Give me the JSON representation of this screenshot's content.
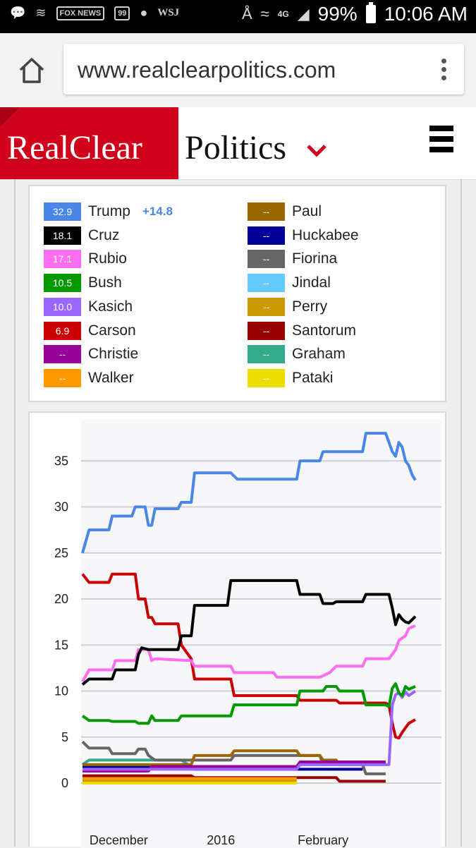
{
  "status_bar": {
    "left_icons": [
      "chat-icon",
      "wifi-question-icon",
      "fox-news-icon",
      "99-icon",
      "globe-icon",
      "wsj-icon"
    ],
    "fox_label": "FOX NEWS",
    "badge_99": "99",
    "wsj_label": "WSJ",
    "network": "4G",
    "battery": "99%",
    "time": "10:06 AM"
  },
  "browser": {
    "url": "www.realclearpolitics.com"
  },
  "site": {
    "logo_red": "RealClear",
    "logo_black": "Politics",
    "accent": "#d0021b"
  },
  "legend": {
    "items": [
      {
        "value": "32.9",
        "name": "Trump",
        "delta": "+14.8",
        "color": "#4a86e8"
      },
      {
        "value": "18.1",
        "name": "Cruz",
        "color": "#000000"
      },
      {
        "value": "17.1",
        "name": "Rubio",
        "color": "#ff6ef0"
      },
      {
        "value": "10.5",
        "name": "Bush",
        "color": "#009900"
      },
      {
        "value": "10.0",
        "name": "Kasich",
        "color": "#9966ff"
      },
      {
        "value": "6.9",
        "name": "Carson",
        "color": "#cc0000"
      },
      {
        "value": "--",
        "name": "Christie",
        "color": "#990099"
      },
      {
        "value": "--",
        "name": "Walker",
        "color": "#ff9900"
      },
      {
        "value": "--",
        "name": "Paul",
        "color": "#996600"
      },
      {
        "value": "--",
        "name": "Huckabee",
        "color": "#000099"
      },
      {
        "value": "--",
        "name": "Fiorina",
        "color": "#666666"
      },
      {
        "value": "--",
        "name": "Jindal",
        "color": "#66ccff"
      },
      {
        "value": "--",
        "name": "Perry",
        "color": "#cc9900"
      },
      {
        "value": "--",
        "name": "Santorum",
        "color": "#990000"
      },
      {
        "value": "--",
        "name": "Graham",
        "color": "#33aa88"
      },
      {
        "value": "--",
        "name": "Pataki",
        "color": "#eedd00"
      }
    ]
  },
  "chart_data": {
    "type": "line",
    "title": "",
    "xlabel": "",
    "ylabel": "",
    "x_tick_labels": [
      "December",
      "2016",
      "February"
    ],
    "x_tick_dates": [
      "2015-12-01",
      "2016-01-01",
      "2016-02-01"
    ],
    "y_ticks": [
      0,
      5,
      10,
      15,
      20,
      25,
      30,
      35
    ],
    "ylim": [
      0,
      38.5
    ],
    "xlim": [
      "2015-11-20",
      "2016-02-29"
    ],
    "grid": true,
    "series": [
      {
        "name": "Trump",
        "color": "#4a86e8",
        "points": [
          [
            "2015-11-20",
            25
          ],
          [
            "2015-11-22",
            27.5
          ],
          [
            "2015-11-28",
            27.5
          ],
          [
            "2015-11-29",
            29
          ],
          [
            "2015-12-05",
            29
          ],
          [
            "2015-12-06",
            30
          ],
          [
            "2015-12-09",
            30
          ],
          [
            "2015-12-10",
            28
          ],
          [
            "2015-12-11",
            28
          ],
          [
            "2015-12-12",
            29.8
          ],
          [
            "2015-12-19",
            29.8
          ],
          [
            "2015-12-20",
            30.5
          ],
          [
            "2015-12-23",
            30.5
          ],
          [
            "2015-12-24",
            33.7
          ],
          [
            "2016-01-04",
            33.7
          ],
          [
            "2016-01-06",
            33
          ],
          [
            "2016-01-24",
            33
          ],
          [
            "2016-01-25",
            35
          ],
          [
            "2016-01-31",
            35
          ],
          [
            "2016-02-01",
            36
          ],
          [
            "2016-02-13",
            36
          ],
          [
            "2016-02-14",
            38
          ],
          [
            "2016-02-20",
            38
          ],
          [
            "2016-02-22",
            36
          ],
          [
            "2016-02-23",
            35.5
          ],
          [
            "2016-02-24",
            37
          ],
          [
            "2016-02-25",
            36.5
          ],
          [
            "2016-02-26",
            35
          ],
          [
            "2016-02-27",
            34.5
          ],
          [
            "2016-02-28",
            33.5
          ],
          [
            "2016-02-29",
            32.9
          ]
        ]
      },
      {
        "name": "Cruz",
        "color": "#000000",
        "points": [
          [
            "2015-11-20",
            10.7
          ],
          [
            "2015-11-22",
            11.3
          ],
          [
            "2015-11-29",
            11.3
          ],
          [
            "2015-11-30",
            12.3
          ],
          [
            "2015-12-06",
            12.3
          ],
          [
            "2015-12-07",
            14
          ],
          [
            "2015-12-08",
            14.7
          ],
          [
            "2015-12-10",
            14.5
          ],
          [
            "2015-12-19",
            14.5
          ],
          [
            "2015-12-20",
            16
          ],
          [
            "2015-12-23",
            16
          ],
          [
            "2015-12-24",
            19.3
          ],
          [
            "2016-01-03",
            19.3
          ],
          [
            "2016-01-04",
            22
          ],
          [
            "2016-01-24",
            22
          ],
          [
            "2016-01-25",
            20.5
          ],
          [
            "2016-01-31",
            20.5
          ],
          [
            "2016-02-01",
            19.5
          ],
          [
            "2016-02-04",
            19.5
          ],
          [
            "2016-02-05",
            19.7
          ],
          [
            "2016-02-13",
            19.7
          ],
          [
            "2016-02-14",
            20.5
          ],
          [
            "2016-02-21",
            20.5
          ],
          [
            "2016-02-22",
            19
          ],
          [
            "2016-02-23",
            17.2
          ],
          [
            "2016-02-24",
            18.3
          ],
          [
            "2016-02-25",
            17.8
          ],
          [
            "2016-02-26",
            17.5
          ],
          [
            "2016-02-27",
            17.4
          ],
          [
            "2016-02-29",
            18.1
          ]
        ]
      },
      {
        "name": "Rubio",
        "color": "#ff6ef0",
        "points": [
          [
            "2015-11-20",
            11
          ],
          [
            "2015-11-22",
            12.3
          ],
          [
            "2015-11-29",
            12.3
          ],
          [
            "2015-11-30",
            13.3
          ],
          [
            "2015-12-06",
            13.3
          ],
          [
            "2015-12-07",
            14.5
          ],
          [
            "2015-12-10",
            14.5
          ],
          [
            "2015-12-11",
            13.3
          ],
          [
            "2015-12-12",
            13.5
          ],
          [
            "2015-12-23",
            13.3
          ],
          [
            "2015-12-24",
            12.7
          ],
          [
            "2016-01-04",
            12.7
          ],
          [
            "2016-01-05",
            12
          ],
          [
            "2016-01-17",
            12
          ],
          [
            "2016-01-18",
            11.5
          ],
          [
            "2016-01-28",
            11.5
          ],
          [
            "2016-01-30",
            11.5
          ],
          [
            "2016-01-31",
            11.5
          ],
          [
            "2016-02-03",
            12
          ],
          [
            "2016-02-05",
            12.7
          ],
          [
            "2016-02-13",
            12.7
          ],
          [
            "2016-02-14",
            13.5
          ],
          [
            "2016-02-21",
            13.5
          ],
          [
            "2016-02-22",
            14
          ],
          [
            "2016-02-23",
            14.5
          ],
          [
            "2016-02-24",
            15.5
          ],
          [
            "2016-02-26",
            16
          ],
          [
            "2016-02-27",
            16.8
          ],
          [
            "2016-02-29",
            17.1
          ]
        ]
      },
      {
        "name": "Bush",
        "color": "#009900",
        "points": [
          [
            "2015-11-20",
            7.3
          ],
          [
            "2015-11-22",
            6.8
          ],
          [
            "2015-11-28",
            6.8
          ],
          [
            "2015-11-29",
            6.7
          ],
          [
            "2015-12-06",
            6.7
          ],
          [
            "2015-12-07",
            6.5
          ],
          [
            "2015-12-10",
            6.5
          ],
          [
            "2015-12-11",
            7.3
          ],
          [
            "2015-12-12",
            6.8
          ],
          [
            "2015-12-19",
            6.8
          ],
          [
            "2015-12-20",
            7.3
          ],
          [
            "2016-01-04",
            7.3
          ],
          [
            "2016-01-05",
            8.5
          ],
          [
            "2016-01-24",
            8.5
          ],
          [
            "2016-01-25",
            10
          ],
          [
            "2016-02-01",
            10
          ],
          [
            "2016-02-02",
            10.5
          ],
          [
            "2016-02-05",
            10.5
          ],
          [
            "2016-02-06",
            10
          ],
          [
            "2016-02-13",
            10
          ],
          [
            "2016-02-14",
            8.5
          ],
          [
            "2016-02-20",
            8.5
          ],
          [
            "2016-02-21",
            8.3
          ],
          [
            "2016-02-22",
            10.3
          ],
          [
            "2016-02-23",
            10.8
          ],
          [
            "2016-02-24",
            9.8
          ],
          [
            "2016-02-25",
            9.5
          ],
          [
            "2016-02-26",
            10.5
          ],
          [
            "2016-02-27",
            10.2
          ],
          [
            "2016-02-29",
            10.5
          ]
        ]
      },
      {
        "name": "Kasich",
        "color": "#9966ff",
        "points": [
          [
            "2015-11-20",
            1.5
          ],
          [
            "2016-01-24",
            1.5
          ],
          [
            "2016-01-25",
            2
          ],
          [
            "2016-02-20",
            2
          ],
          [
            "2016-02-21",
            2
          ],
          [
            "2016-02-22",
            8.5
          ],
          [
            "2016-02-23",
            9.6
          ],
          [
            "2016-02-24",
            9.8
          ],
          [
            "2016-02-25",
            9.3
          ],
          [
            "2016-02-26",
            9.9
          ],
          [
            "2016-02-27",
            9.5
          ],
          [
            "2016-02-29",
            10
          ]
        ]
      },
      {
        "name": "Carson",
        "color": "#cc0000",
        "points": [
          [
            "2015-11-20",
            22.7
          ],
          [
            "2015-11-22",
            21.8
          ],
          [
            "2015-11-28",
            21.8
          ],
          [
            "2015-11-29",
            22.7
          ],
          [
            "2015-12-06",
            22.7
          ],
          [
            "2015-12-07",
            20
          ],
          [
            "2015-12-09",
            20
          ],
          [
            "2015-12-10",
            18
          ],
          [
            "2015-12-11",
            18
          ],
          [
            "2015-12-12",
            17.3
          ],
          [
            "2015-12-19",
            17.3
          ],
          [
            "2015-12-20",
            15
          ],
          [
            "2015-12-23",
            13.5
          ],
          [
            "2015-12-24",
            11.3
          ],
          [
            "2016-01-04",
            11.3
          ],
          [
            "2016-01-05",
            9.5
          ],
          [
            "2016-01-24",
            9.5
          ],
          [
            "2016-01-25",
            9
          ],
          [
            "2016-02-05",
            9
          ],
          [
            "2016-02-06",
            8.7
          ],
          [
            "2016-02-20",
            8.7
          ],
          [
            "2016-02-21",
            8.5
          ],
          [
            "2016-02-22",
            6.5
          ],
          [
            "2016-02-23",
            5
          ],
          [
            "2016-02-24",
            4.9
          ],
          [
            "2016-02-25",
            5.5
          ],
          [
            "2016-02-26",
            6
          ],
          [
            "2016-02-27",
            6.5
          ],
          [
            "2016-02-29",
            6.9
          ]
        ]
      },
      {
        "name": "Christie",
        "color": "#990099",
        "points": [
          [
            "2015-11-20",
            1.3
          ],
          [
            "2015-12-10",
            1.3
          ],
          [
            "2015-12-11",
            1.8
          ],
          [
            "2016-01-24",
            1.8
          ],
          [
            "2016-01-25",
            2.3
          ],
          [
            "2016-02-20",
            2.3
          ]
        ]
      },
      {
        "name": "Walker",
        "color": "#ff9900",
        "points": [
          [
            "2015-11-20",
            0.5
          ],
          [
            "2016-01-24",
            0.5
          ]
        ]
      },
      {
        "name": "Paul",
        "color": "#996600",
        "points": [
          [
            "2015-11-20",
            2
          ],
          [
            "2015-12-23",
            2
          ],
          [
            "2015-12-24",
            3
          ],
          [
            "2016-01-04",
            3
          ],
          [
            "2016-01-05",
            3.5
          ],
          [
            "2016-01-24",
            3.5
          ],
          [
            "2016-01-25",
            3
          ],
          [
            "2016-01-31",
            3
          ],
          [
            "2016-02-01",
            2.5
          ],
          [
            "2016-02-05",
            2.5
          ],
          [
            "2016-02-06",
            2
          ],
          [
            "2016-02-13",
            2
          ]
        ]
      },
      {
        "name": "Huckabee",
        "color": "#000099",
        "points": [
          [
            "2015-11-20",
            1.8
          ],
          [
            "2015-12-23",
            1.8
          ],
          [
            "2015-12-24",
            1.5
          ],
          [
            "2016-02-13",
            1.5
          ]
        ]
      },
      {
        "name": "Fiorina",
        "color": "#666666",
        "points": [
          [
            "2015-11-20",
            4.5
          ],
          [
            "2015-11-22",
            3.8
          ],
          [
            "2015-11-28",
            3.8
          ],
          [
            "2015-11-29",
            3.2
          ],
          [
            "2015-12-06",
            3.2
          ],
          [
            "2015-12-07",
            3.7
          ],
          [
            "2015-12-09",
            3.7
          ],
          [
            "2015-12-10",
            3
          ],
          [
            "2015-12-12",
            2.5
          ],
          [
            "2016-01-04",
            2.5
          ],
          [
            "2016-01-05",
            3
          ],
          [
            "2016-01-31",
            3
          ],
          [
            "2016-02-01",
            2
          ],
          [
            "2016-02-13",
            2
          ],
          [
            "2016-02-14",
            1
          ],
          [
            "2016-02-20",
            1
          ]
        ]
      },
      {
        "name": "Jindal",
        "color": "#66ccff",
        "points": [
          [
            "2015-11-20",
            1.5
          ],
          [
            "2015-12-10",
            1.5
          ]
        ]
      },
      {
        "name": "Perry",
        "color": "#cc9900",
        "points": [
          [
            "2015-11-20",
            0.3
          ],
          [
            "2016-01-24",
            0.3
          ]
        ]
      },
      {
        "name": "Santorum",
        "color": "#990000",
        "points": [
          [
            "2015-11-20",
            0.8
          ],
          [
            "2015-12-23",
            0.8
          ],
          [
            "2015-12-24",
            0.6
          ],
          [
            "2016-02-05",
            0.6
          ],
          [
            "2016-02-06",
            0.2
          ],
          [
            "2016-02-20",
            0.2
          ]
        ]
      },
      {
        "name": "Graham",
        "color": "#33aa88",
        "points": [
          [
            "2015-11-20",
            2
          ],
          [
            "2015-11-22",
            2.5
          ],
          [
            "2015-12-20",
            2.5
          ],
          [
            "2015-12-23",
            1.8
          ],
          [
            "2016-01-24",
            1.8
          ]
        ]
      },
      {
        "name": "Pataki",
        "color": "#eedd00",
        "points": [
          [
            "2015-11-20",
            0
          ],
          [
            "2016-01-24",
            0
          ]
        ]
      }
    ]
  }
}
